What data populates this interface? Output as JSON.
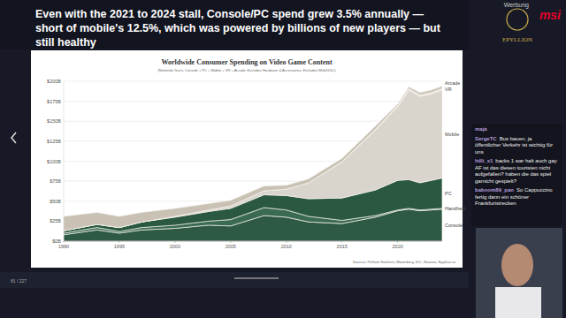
{
  "chart_data": {
    "type": "stacked_area",
    "headline": "Even with the 2021 to 2024 stall, Console/PC spend grew 3.5% annually — short of mobile's 12.5%, which was powered by billions of new players — but still healthy",
    "title": "Worldwide Consumer Spending on Video Game Content",
    "subtitle": "(Nintendo Years, Console + PC + Mobile + VR + Arcade; Excludes Hardware & Accessories; Excludes Web/UGC)",
    "source": "Sources: Pelham Smithers, Bloomberg, IDC, Newzoo, Epyllion.co",
    "stacked": true,
    "grid": true,
    "x": [
      1990,
      1993,
      1995,
      1997,
      2000,
      2003,
      2005,
      2008,
      2010,
      2012,
      2015,
      2018,
      2020,
      2021,
      2022,
      2023,
      2024
    ],
    "xlim": [
      1990,
      2024
    ],
    "xticks": [
      1990,
      1995,
      2000,
      2005,
      2010,
      2015,
      2020
    ],
    "ylim": [
      0,
      200
    ],
    "yticks": [
      {
        "value": 0,
        "label": "$0B"
      },
      {
        "value": 25,
        "label": "$25B"
      },
      {
        "value": 50,
        "label": "$50B"
      },
      {
        "value": 75,
        "label": "$75B"
      },
      {
        "value": 100,
        "label": "$100B"
      },
      {
        "value": 125,
        "label": "$125B"
      },
      {
        "value": 150,
        "label": "$150B"
      },
      {
        "value": 175,
        "label": "$175B"
      },
      {
        "value": 200,
        "label": "$200B"
      }
    ],
    "series": [
      {
        "name": "Console",
        "color": "#2e5a45",
        "values": [
          8,
          14,
          10,
          14,
          16,
          20,
          19,
          32,
          30,
          24,
          22,
          30,
          38,
          40,
          38,
          39,
          40
        ]
      },
      {
        "name": "Handheld",
        "color": "#3b6a53",
        "values": [
          2,
          3,
          2,
          3,
          4,
          5,
          8,
          10,
          9,
          7,
          4,
          2,
          1,
          1,
          1,
          1,
          1
        ]
      },
      {
        "name": "PC",
        "color": "#2a5840",
        "values": [
          3,
          4,
          5,
          7,
          10,
          12,
          14,
          16,
          18,
          22,
          28,
          32,
          37,
          36,
          34,
          36,
          38
        ]
      },
      {
        "name": "Mobile",
        "color": "#d9d5cd",
        "values": [
          0,
          0,
          0,
          0,
          1,
          2,
          3,
          5,
          8,
          20,
          45,
          75,
          92,
          112,
          108,
          108,
          110
        ]
      },
      {
        "name": "VR",
        "color": "#e8e4de",
        "values": [
          0,
          0,
          0,
          0,
          0,
          0,
          0,
          0,
          0,
          0,
          0.5,
          1,
          1.5,
          2,
          2,
          2,
          2
        ]
      },
      {
        "name": "Arcade",
        "color": "#c8c1b4",
        "values": [
          18,
          15,
          14,
          12,
          10,
          8,
          7,
          6,
          5,
          5,
          4,
          4,
          2,
          2,
          3,
          3,
          3
        ]
      }
    ]
  },
  "overlay": {
    "logo": "EPYLLION",
    "ad_label": "Werbung",
    "ad_brand": "msi",
    "slide_counter": "81 / 227",
    "chat": [
      {
        "user": "maja",
        "text": ""
      },
      {
        "user": "SergeTC",
        "text": "Bus bauen, ja öffentlicher Verkehr ist wichtig für uns"
      },
      {
        "user": "hilli_x1",
        "text": "backs 1 war halt auch gay AF ist das diesen touristen nicht aufgefallen? haben die das spiel garnicht gespielt?"
      },
      {
        "user": "baboom89_pan",
        "text": "So Cappuccino fertig dann ein schöner Frankfurtstrecken"
      }
    ]
  }
}
